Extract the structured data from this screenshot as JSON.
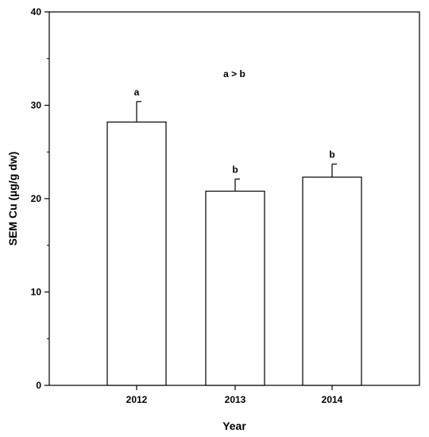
{
  "chart_data": {
    "type": "bar",
    "categories": [
      "2012",
      "2013",
      "2014"
    ],
    "values": [
      28.2,
      20.8,
      22.3
    ],
    "error_upper": [
      30.4,
      22.1,
      23.7
    ],
    "bar_labels": [
      "a",
      "b",
      "b"
    ],
    "annotation": "a > b",
    "xlabel": "Year",
    "ylabel": "SEM Cu (µg/g dw)",
    "ylim": [
      0,
      40
    ],
    "yticks": [
      0,
      10,
      20,
      30,
      40
    ],
    "grid": false,
    "legend": "none",
    "bar_fill": "#ffffff",
    "bar_stroke": "#000000"
  }
}
